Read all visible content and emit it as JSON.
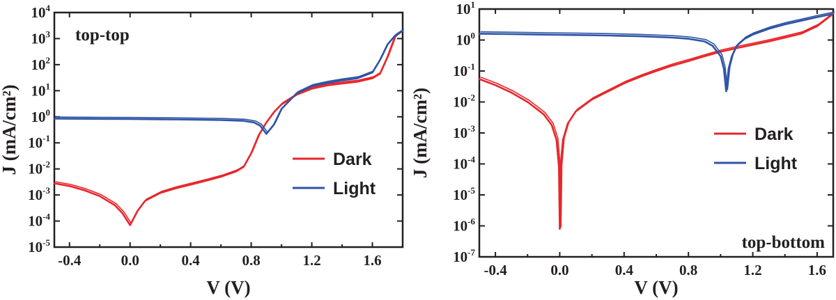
{
  "colors": {
    "dark": "#e8262b",
    "light": "#2e55a5",
    "axis": "#231f20"
  },
  "chart_data": [
    {
      "type": "line",
      "yscale": "log",
      "annotation": "top-top",
      "xlabel": "V (V)",
      "ylabel": "J (mA/cm²)",
      "xlim": [
        -0.5,
        1.8
      ],
      "ylim": [
        1e-05,
        10000.0
      ],
      "xticks": [
        "-0.4",
        "0.0",
        "0.4",
        "0.8",
        "1.2",
        "1.6"
      ],
      "xtick_values": [
        -0.4,
        0.0,
        0.4,
        0.8,
        1.2,
        1.6
      ],
      "ytick_exponents": [
        "-5",
        "-4",
        "-3",
        "-2",
        "-1",
        "0",
        "1",
        "2",
        "3",
        "4"
      ],
      "legend": {
        "position": "right",
        "entries": [
          "Dark",
          "Light"
        ]
      },
      "series": [
        {
          "name": "Dark",
          "color": "#e8262b",
          "x": [
            -0.5,
            -0.4,
            -0.3,
            -0.2,
            -0.1,
            -0.05,
            0.0,
            0.05,
            0.1,
            0.2,
            0.3,
            0.4,
            0.5,
            0.6,
            0.7,
            0.75,
            0.8,
            0.85,
            0.9,
            0.95,
            1.0,
            1.1,
            1.2,
            1.3,
            1.4,
            1.5,
            1.6,
            1.65,
            1.7,
            1.75,
            1.8
          ],
          "y": [
            0.0028,
            0.0022,
            0.0015,
            0.0009,
            0.0004,
            0.0002,
            7e-05,
            0.00025,
            0.0006,
            0.0012,
            0.0018,
            0.0025,
            0.0035,
            0.005,
            0.008,
            0.012,
            0.04,
            0.2,
            0.6,
            1.5,
            3,
            7,
            12,
            16,
            19,
            22,
            30,
            45,
            200,
            1200,
            2000
          ]
        },
        {
          "name": "Light",
          "color": "#2e55a5",
          "x": [
            -0.5,
            -0.4,
            -0.2,
            0.0,
            0.2,
            0.4,
            0.6,
            0.75,
            0.82,
            0.86,
            0.9,
            0.95,
            1.0,
            1.1,
            1.2,
            1.3,
            1.4,
            1.5,
            1.6,
            1.65,
            1.7,
            1.75,
            1.8
          ],
          "y": [
            0.85,
            0.84,
            0.83,
            0.82,
            0.8,
            0.78,
            0.75,
            0.7,
            0.6,
            0.45,
            0.22,
            0.5,
            2,
            8,
            15,
            20,
            25,
            30,
            50,
            150,
            600,
            1300,
            2000
          ]
        }
      ]
    },
    {
      "type": "line",
      "yscale": "log",
      "annotation": "top-bottom",
      "xlabel": "V (V)",
      "ylabel": "J (mA/cm²)",
      "xlim": [
        -0.5,
        1.7
      ],
      "ylim": [
        1e-07,
        10
      ],
      "xticks": [
        "-0.4",
        "0.0",
        "0.4",
        "0.8",
        "1.2",
        "1.6"
      ],
      "xtick_values": [
        -0.4,
        0.0,
        0.4,
        0.8,
        1.2,
        1.6
      ],
      "ytick_exponents": [
        "-7",
        "-6",
        "-5",
        "-4",
        "-3",
        "-2",
        "-1",
        "0",
        "1"
      ],
      "legend": {
        "position": "right",
        "entries": [
          "Dark",
          "Light"
        ]
      },
      "series": [
        {
          "name": "Dark",
          "color": "#e8262b",
          "x": [
            -0.5,
            -0.4,
            -0.3,
            -0.2,
            -0.1,
            -0.05,
            -0.02,
            -0.005,
            0.0,
            0.005,
            0.02,
            0.05,
            0.1,
            0.2,
            0.3,
            0.4,
            0.5,
            0.6,
            0.7,
            0.8,
            0.9,
            1.0,
            1.1,
            1.2,
            1.3,
            1.4,
            1.5,
            1.6,
            1.7
          ],
          "y": [
            0.055,
            0.035,
            0.02,
            0.01,
            0.004,
            0.0018,
            0.0006,
            8e-05,
            8e-07,
            8e-05,
            0.0006,
            0.002,
            0.005,
            0.012,
            0.022,
            0.04,
            0.065,
            0.1,
            0.15,
            0.21,
            0.3,
            0.42,
            0.55,
            0.7,
            0.9,
            1.2,
            1.6,
            2.8,
            7
          ]
        },
        {
          "name": "Light",
          "color": "#2e55a5",
          "x": [
            -0.5,
            -0.3,
            -0.1,
            0.1,
            0.3,
            0.5,
            0.7,
            0.8,
            0.9,
            0.95,
            1.0,
            1.02,
            1.035,
            1.05,
            1.07,
            1.1,
            1.15,
            1.2,
            1.3,
            1.4,
            1.5,
            1.6,
            1.7
          ],
          "y": [
            1.6,
            1.55,
            1.5,
            1.45,
            1.4,
            1.32,
            1.2,
            1.1,
            0.9,
            0.65,
            0.3,
            0.12,
            0.022,
            0.12,
            0.3,
            0.65,
            1.1,
            1.5,
            2.3,
            3.2,
            4.2,
            5.5,
            7
          ]
        }
      ]
    }
  ]
}
